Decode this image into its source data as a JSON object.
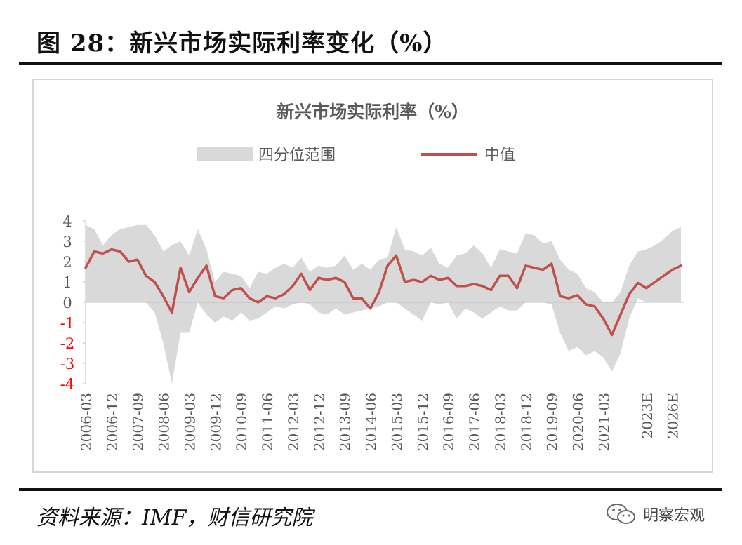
{
  "figure": {
    "title": "图 28：新兴市场实际利率变化（%）",
    "source": "资料来源：IMF，财信研究院",
    "watermark": "明察宏观",
    "watermark_icon": "wechat-icon"
  },
  "colors": {
    "median": "#C0504D",
    "band": "#D9D9D9",
    "negative_tick": "#FF0000",
    "text": "#595959"
  },
  "chart_data": {
    "type": "area",
    "title": "新兴市场实际利率（%）",
    "legend": {
      "position": "top",
      "entries": [
        "四分位范围",
        "中值"
      ]
    },
    "xlabel": "",
    "ylabel": "",
    "ylim": [
      -4,
      4
    ],
    "y_ticks": [
      "4",
      "3",
      "2",
      "1",
      "0",
      "-1",
      "-2",
      "-3",
      "-4"
    ],
    "grid": false,
    "x_tick_labels": [
      "2006-03",
      "2006-12",
      "2007-09",
      "2008-06",
      "2009-03",
      "2009-12",
      "2010-09",
      "2011-06",
      "2012-03",
      "2012-12",
      "2013-09",
      "2014-06",
      "2015-03",
      "2015-12",
      "2016-09",
      "2017-06",
      "2018-03",
      "2018-12",
      "2019-09",
      "2020-06",
      "2021-03",
      "2023E",
      "2026E"
    ],
    "x": [
      "2006-03",
      "2006-06",
      "2006-09",
      "2006-12",
      "2007-03",
      "2007-06",
      "2007-09",
      "2007-12",
      "2008-03",
      "2008-06",
      "2008-09",
      "2008-12",
      "2009-03",
      "2009-06",
      "2009-09",
      "2009-12",
      "2010-03",
      "2010-06",
      "2010-09",
      "2010-12",
      "2011-03",
      "2011-06",
      "2011-09",
      "2011-12",
      "2012-03",
      "2012-06",
      "2012-09",
      "2012-12",
      "2013-03",
      "2013-06",
      "2013-09",
      "2013-12",
      "2014-03",
      "2014-06",
      "2014-09",
      "2014-12",
      "2015-03",
      "2015-06",
      "2015-09",
      "2015-12",
      "2016-03",
      "2016-06",
      "2016-09",
      "2016-12",
      "2017-03",
      "2017-06",
      "2017-09",
      "2017-12",
      "2018-03",
      "2018-06",
      "2018-09",
      "2018-12",
      "2019-03",
      "2019-06",
      "2019-09",
      "2019-12",
      "2020-03",
      "2020-06",
      "2020-09",
      "2020-12",
      "2021-03",
      "2021-06",
      "2021-09",
      "2021-12",
      "2022",
      "2023E",
      "2024E",
      "2025E",
      "2026E",
      "2027E"
    ],
    "series": [
      {
        "name": "中值",
        "values": [
          1.7,
          2.5,
          2.4,
          2.6,
          2.5,
          2.0,
          2.1,
          1.3,
          1.0,
          0.3,
          -0.5,
          1.7,
          0.5,
          1.2,
          1.8,
          0.3,
          0.2,
          0.6,
          0.7,
          0.2,
          0.0,
          0.3,
          0.2,
          0.4,
          0.8,
          1.4,
          0.6,
          1.2,
          1.1,
          1.2,
          1.0,
          0.2,
          0.2,
          -0.3,
          0.5,
          1.8,
          2.3,
          1.0,
          1.1,
          1.0,
          1.3,
          1.1,
          1.2,
          0.8,
          0.8,
          0.9,
          0.8,
          0.6,
          1.3,
          1.3,
          0.7,
          1.8,
          1.7,
          1.6,
          1.9,
          0.3,
          0.2,
          0.35,
          -0.1,
          -0.2,
          -0.8,
          -1.6,
          -0.6,
          0.4,
          0.95,
          0.7,
          1.0,
          1.3,
          1.6,
          1.8
        ]
      },
      {
        "name": "四分位范围 上沿",
        "values": [
          3.8,
          3.6,
          2.8,
          3.3,
          3.6,
          3.7,
          3.8,
          3.8,
          3.3,
          2.5,
          2.8,
          3.0,
          2.3,
          3.6,
          2.6,
          1.0,
          1.5,
          1.4,
          1.3,
          0.7,
          1.5,
          1.4,
          1.7,
          1.9,
          1.7,
          2.2,
          1.5,
          1.8,
          1.7,
          1.8,
          2.3,
          1.6,
          1.9,
          1.6,
          2.1,
          2.2,
          3.7,
          2.6,
          2.5,
          2.3,
          2.7,
          1.9,
          1.7,
          2.3,
          2.4,
          2.8,
          2.4,
          1.7,
          2.6,
          2.5,
          2.4,
          3.4,
          3.3,
          2.9,
          3.0,
          2.1,
          1.6,
          1.4,
          0.7,
          0.5,
          0.0,
          0.0,
          0.5,
          1.8,
          2.5,
          2.6,
          2.8,
          3.1,
          3.5,
          3.7
        ]
      },
      {
        "name": "四分位范围 下沿",
        "values": [
          0.0,
          0.0,
          0.0,
          0.0,
          0.0,
          0.0,
          0.0,
          0.0,
          -0.5,
          -2.0,
          -4.0,
          -1.5,
          -1.5,
          0.0,
          -0.6,
          -1.0,
          -0.7,
          -0.9,
          -0.5,
          -0.9,
          -0.8,
          -0.5,
          -0.2,
          -0.3,
          -0.1,
          0.0,
          -0.1,
          -0.5,
          -0.6,
          -0.3,
          -0.6,
          -0.5,
          -0.4,
          -0.3,
          -0.2,
          0.0,
          0.0,
          -0.3,
          -0.6,
          -0.9,
          0.0,
          -0.1,
          0.0,
          -0.8,
          -0.3,
          -0.5,
          -0.8,
          -0.5,
          -0.2,
          -0.4,
          -0.4,
          0.0,
          0.0,
          0.0,
          -0.1,
          -1.5,
          -2.4,
          -2.2,
          -2.6,
          -2.4,
          -2.7,
          -3.4,
          -2.5,
          -0.8,
          0.2,
          0.0,
          0.0,
          0.0,
          0.0,
          0.0
        ]
      }
    ]
  }
}
